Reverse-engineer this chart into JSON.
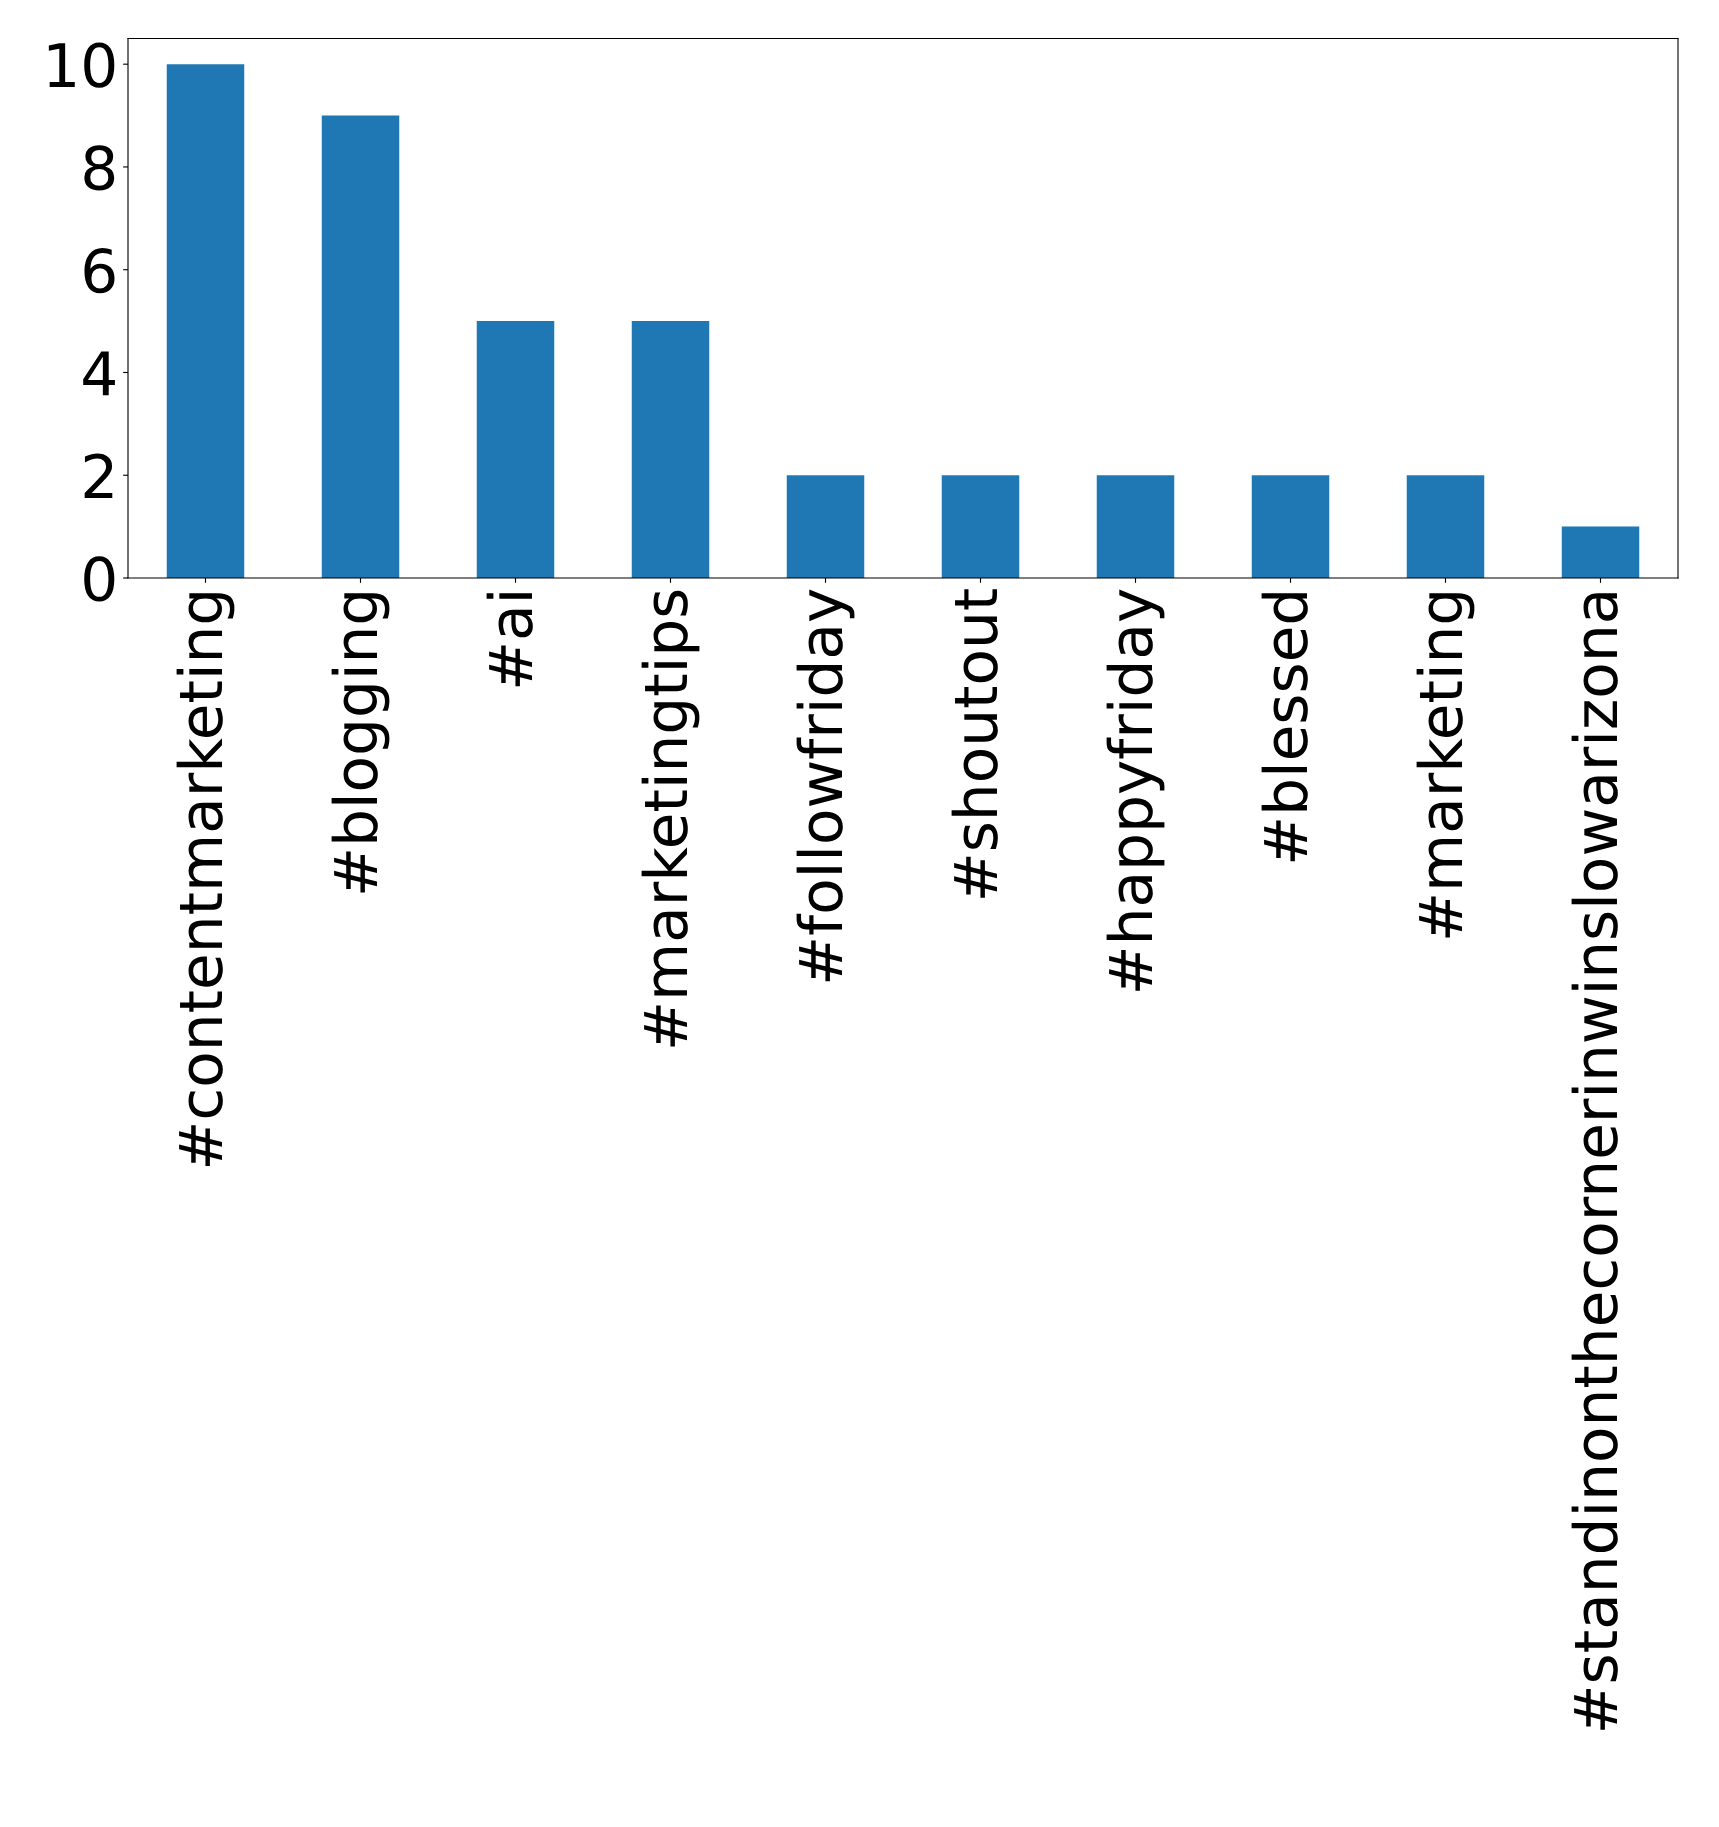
{
  "chart_data": {
    "type": "bar",
    "categories": [
      "#contentmarketing",
      "#blogging",
      "#ai",
      "#marketingtips",
      "#followfriday",
      "#shoutout",
      "#happyfriday",
      "#blessed",
      "#marketing",
      "#standinonthecornerinwinslowarizona"
    ],
    "values": [
      10,
      9,
      5,
      5,
      2,
      2,
      2,
      2,
      2,
      1
    ],
    "color": "#1f77b4",
    "ylim": [
      0,
      10.5
    ],
    "yticks": [
      0,
      2,
      4,
      6,
      8,
      10
    ],
    "grid": false,
    "legend": false
  }
}
